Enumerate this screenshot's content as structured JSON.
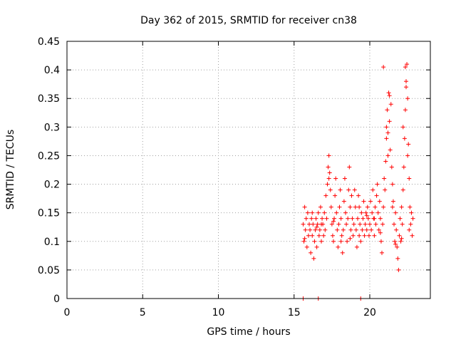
{
  "chart_data": {
    "type": "scatter",
    "title": "Day 362 of 2015, SRMTID for receiver cn38",
    "xlabel": "GPS time / hours",
    "ylabel": "SRMTID / TECUs",
    "xlim": [
      0,
      24
    ],
    "ylim": [
      0,
      0.45
    ],
    "x_ticks": [
      0,
      5,
      10,
      15,
      20
    ],
    "x_tick_labels": [
      "0",
      "5",
      "10",
      "15",
      "20"
    ],
    "y_ticks": [
      0,
      0.05,
      0.1,
      0.15,
      0.2,
      0.25,
      0.3,
      0.35,
      0.4,
      0.45
    ],
    "y_tick_labels": [
      "0",
      "0.05",
      "0.1",
      "0.15",
      "0.2",
      "0.25",
      "0.3",
      "0.35",
      "0.4",
      "0.45"
    ],
    "grid": true,
    "marker": "+",
    "color": "#ff0000",
    "series": [
      {
        "name": "SRMTID",
        "points": [
          [
            15.6,
            0.13
          ],
          [
            15.65,
            0.1
          ],
          [
            15.7,
            0.16
          ],
          [
            15.75,
            0.12
          ],
          [
            15.8,
            0.14
          ],
          [
            15.85,
            0.09
          ],
          [
            15.9,
            0.15
          ],
          [
            15.95,
            0.11
          ],
          [
            16.0,
            0.13
          ],
          [
            16.05,
            0.12
          ],
          [
            16.1,
            0.08
          ],
          [
            16.15,
            0.14
          ],
          [
            16.2,
            0.11
          ],
          [
            16.25,
            0.13
          ],
          [
            16.3,
            0.07
          ],
          [
            16.35,
            0.1
          ],
          [
            16.4,
            0.12
          ],
          [
            16.45,
            0.14
          ],
          [
            16.5,
            0.09
          ],
          [
            16.55,
            0.13
          ],
          [
            16.6,
            0.15
          ],
          [
            16.65,
            0.11
          ],
          [
            16.7,
            0.12
          ],
          [
            16.75,
            0.16
          ],
          [
            16.8,
            0.1
          ],
          [
            16.85,
            0.14
          ],
          [
            16.9,
            0.13
          ],
          [
            16.95,
            0.11
          ],
          [
            17.0,
            0.15
          ],
          [
            17.05,
            0.12
          ],
          [
            17.1,
            0.18
          ],
          [
            17.15,
            0.14
          ],
          [
            17.2,
            0.2
          ],
          [
            17.25,
            0.23
          ],
          [
            17.3,
            0.25
          ],
          [
            17.35,
            0.22
          ],
          [
            17.4,
            0.19
          ],
          [
            17.45,
            0.16
          ],
          [
            17.5,
            0.13
          ],
          [
            17.55,
            0.11
          ],
          [
            17.6,
            0.1
          ],
          [
            17.65,
            0.14
          ],
          [
            17.7,
            0.18
          ],
          [
            17.75,
            0.21
          ],
          [
            17.8,
            0.15
          ],
          [
            17.85,
            0.12
          ],
          [
            17.9,
            0.09
          ],
          [
            17.95,
            0.13
          ],
          [
            18.0,
            0.16
          ],
          [
            18.05,
            0.19
          ],
          [
            18.1,
            0.14
          ],
          [
            18.15,
            0.11
          ],
          [
            18.2,
            0.08
          ],
          [
            18.25,
            0.12
          ],
          [
            18.3,
            0.17
          ],
          [
            18.35,
            0.21
          ],
          [
            18.4,
            0.15
          ],
          [
            18.45,
            0.13
          ],
          [
            18.5,
            0.1
          ],
          [
            18.55,
            0.14
          ],
          [
            18.6,
            0.19
          ],
          [
            18.65,
            0.23
          ],
          [
            18.7,
            0.16
          ],
          [
            18.75,
            0.12
          ],
          [
            18.8,
            0.18
          ],
          [
            18.85,
            0.14
          ],
          [
            18.9,
            0.11
          ],
          [
            18.95,
            0.13
          ],
          [
            19.0,
            0.19
          ],
          [
            19.05,
            0.16
          ],
          [
            19.1,
            0.12
          ],
          [
            19.15,
            0.09
          ],
          [
            19.2,
            0.14
          ],
          [
            19.25,
            0.18
          ],
          [
            19.3,
            0.11
          ],
          [
            19.35,
            0.13
          ],
          [
            19.4,
            0.1
          ],
          [
            19.45,
            0.15
          ],
          [
            19.5,
            0.12
          ],
          [
            19.55,
            0.14
          ],
          [
            19.6,
            0.17
          ],
          [
            19.65,
            0.11
          ],
          [
            19.7,
            0.13
          ],
          [
            19.75,
            0.15
          ],
          [
            19.8,
            0.12
          ],
          [
            19.85,
            0.16
          ],
          [
            19.9,
            0.14
          ],
          [
            19.95,
            0.11
          ],
          [
            20.0,
            0.13
          ],
          [
            20.05,
            0.17
          ],
          [
            20.1,
            0.12
          ],
          [
            20.15,
            0.15
          ],
          [
            20.2,
            0.19
          ],
          [
            20.25,
            0.14
          ],
          [
            20.3,
            0.11
          ],
          [
            20.35,
            0.16
          ],
          [
            20.4,
            0.13
          ],
          [
            20.45,
            0.18
          ],
          [
            20.5,
            0.2
          ],
          [
            20.55,
            0.15
          ],
          [
            20.6,
            0.12
          ],
          [
            20.65,
            0.17
          ],
          [
            20.7,
            0.14
          ],
          [
            20.75,
            0.1
          ],
          [
            20.8,
            0.08
          ],
          [
            20.85,
            0.13
          ],
          [
            20.9,
            0.16
          ],
          [
            20.95,
            0.21
          ],
          [
            21.0,
            0.19
          ],
          [
            21.05,
            0.24
          ],
          [
            21.1,
            0.28
          ],
          [
            21.15,
            0.33
          ],
          [
            21.2,
            0.29
          ],
          [
            21.25,
            0.36
          ],
          [
            21.3,
            0.31
          ],
          [
            21.35,
            0.26
          ],
          [
            21.4,
            0.34
          ],
          [
            21.45,
            0.23
          ],
          [
            21.5,
            0.2
          ],
          [
            21.55,
            0.17
          ],
          [
            21.6,
            0.13
          ],
          [
            21.65,
            0.1
          ],
          [
            21.7,
            0.15
          ],
          [
            21.75,
            0.12
          ],
          [
            21.8,
            0.09
          ],
          [
            21.85,
            0.07
          ],
          [
            21.9,
            0.05
          ],
          [
            21.95,
            0.11
          ],
          [
            22.0,
            0.14
          ],
          [
            22.05,
            0.1
          ],
          [
            22.1,
            0.16
          ],
          [
            22.15,
            0.13
          ],
          [
            22.2,
            0.19
          ],
          [
            22.25,
            0.23
          ],
          [
            22.3,
            0.28
          ],
          [
            22.35,
            0.33
          ],
          [
            22.4,
            0.38
          ],
          [
            22.45,
            0.41
          ],
          [
            22.5,
            0.35
          ],
          [
            22.55,
            0.27
          ],
          [
            22.6,
            0.21
          ],
          [
            22.65,
            0.16
          ],
          [
            22.7,
            0.13
          ],
          [
            22.75,
            0.15
          ],
          [
            22.8,
            0.11
          ],
          [
            22.85,
            0.14
          ],
          [
            20.9,
            0.405
          ],
          [
            21.3,
            0.355
          ],
          [
            22.35,
            0.405
          ],
          [
            22.5,
            0.25
          ],
          [
            21.1,
            0.3
          ],
          [
            21.2,
            0.25
          ],
          [
            22.2,
            0.3
          ],
          [
            22.4,
            0.37
          ],
          [
            16.2,
            0.15
          ],
          [
            16.8,
            0.13
          ],
          [
            17.3,
            0.21
          ],
          [
            18.1,
            0.1
          ],
          [
            19.3,
            0.16
          ],
          [
            20.3,
            0.14
          ],
          [
            21.5,
            0.16
          ],
          [
            22.6,
            0.12
          ],
          [
            15.7,
            0.105
          ],
          [
            16.5,
            0.125
          ],
          [
            17.6,
            0.135
          ],
          [
            18.7,
            0.105
          ],
          [
            19.8,
            0.145
          ],
          [
            20.7,
            0.115
          ],
          [
            21.7,
            0.095
          ],
          [
            22.1,
            0.105
          ],
          [
            15.6,
            0.0
          ],
          [
            16.6,
            0.0
          ],
          [
            19.4,
            0.0
          ]
        ]
      }
    ]
  }
}
